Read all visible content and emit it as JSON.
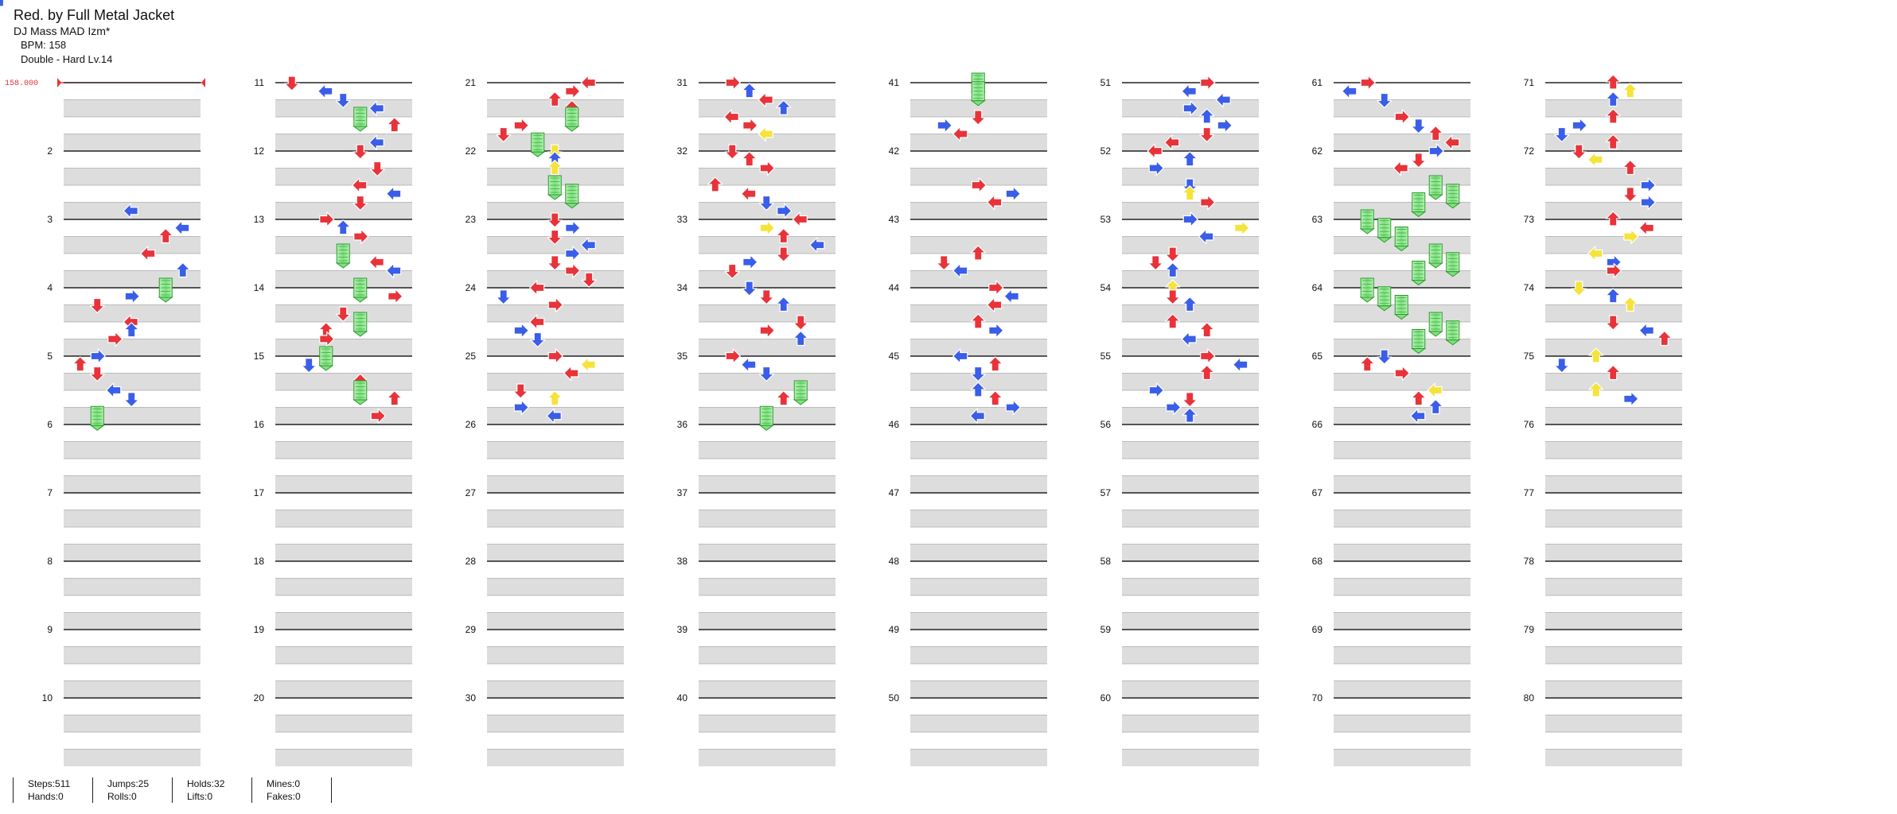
{
  "header": {
    "title": "Red. by Full Metal Jacket",
    "artist": "DJ Mass MAD Izm*",
    "bpm": "BPM: 158",
    "difficulty": "Double - Hard  Lv.14"
  },
  "bpm_marker": "158.000",
  "measure_labels": [
    "",
    "2",
    "3",
    "4",
    "5",
    "6",
    "7",
    "8",
    "9",
    "10",
    "11",
    "12",
    "13",
    "14",
    "15",
    "16",
    "17",
    "18",
    "19",
    "20",
    "21",
    "22",
    "23",
    "24",
    "25",
    "26",
    "27",
    "28",
    "29",
    "30",
    "31",
    "32",
    "33",
    "34",
    "35",
    "36",
    "37",
    "38",
    "39",
    "40",
    "41",
    "42",
    "43",
    "44",
    "45",
    "46",
    "47",
    "48",
    "49",
    "50",
    "51",
    "52",
    "53",
    "54",
    "55",
    "56",
    "57",
    "58",
    "59",
    "60",
    "61",
    "62",
    "63",
    "64",
    "65",
    "66",
    "67",
    "68",
    "69",
    "70",
    "71",
    "72",
    "73",
    "74",
    "75",
    "76",
    "77",
    "78",
    "79",
    "80"
  ],
  "arrow_colors": {
    "quarter": "#e8333a",
    "eighth": "#3a5ee8",
    "sixteenth": "#f5e33a",
    "hold": "#7ee07e"
  },
  "notes": {
    "c0": [
      [
        4,
        0,
        "r",
        4
      ],
      [
        4.25,
        3,
        "b",
        4
      ],
      [
        4.5,
        4,
        "r",
        4
      ],
      [
        4.75,
        3,
        "b",
        2
      ],
      [
        5,
        4,
        "r",
        4
      ],
      [
        5.25,
        6,
        "b",
        2
      ],
      [
        5.5,
        5,
        "r",
        3
      ],
      [
        6,
        4,
        "r",
        2
      ],
      [
        6.25,
        3,
        "b",
        4
      ],
      [
        6.5,
        6,
        "b",
        3
      ],
      [
        7,
        5,
        "h",
        1
      ],
      [
        7.25,
        3,
        "b",
        1
      ],
      [
        7.5,
        1,
        "r",
        0
      ],
      [
        8,
        3,
        "r",
        2
      ],
      [
        8.25,
        3,
        "b",
        3
      ],
      [
        8.5,
        2,
        "r",
        1
      ],
      [
        9,
        1,
        "b",
        1
      ],
      [
        9.25,
        0,
        "r",
        3
      ],
      [
        9.5,
        1,
        "r",
        0
      ],
      [
        10,
        2,
        "b",
        2
      ],
      [
        10.25,
        3,
        "b",
        0
      ],
      [
        10.75,
        1,
        "h",
        1
      ]
    ],
    "c1": [
      [
        1,
        0,
        "r",
        0
      ],
      [
        1.25,
        2,
        "b",
        2
      ],
      [
        1.5,
        3,
        "b",
        0
      ],
      [
        1.75,
        5,
        "b",
        2
      ],
      [
        2,
        4,
        "h",
        0
      ],
      [
        2.25,
        6,
        "r",
        3
      ],
      [
        2.75,
        5,
        "b",
        2
      ],
      [
        3,
        4,
        "r",
        0
      ],
      [
        3.5,
        5,
        "r",
        0
      ],
      [
        4,
        4,
        "r",
        2
      ],
      [
        4.25,
        6,
        "b",
        2
      ],
      [
        4.5,
        4,
        "r",
        0
      ],
      [
        5,
        2,
        "r",
        1
      ],
      [
        5.25,
        3,
        "b",
        3
      ],
      [
        5.5,
        4,
        "r",
        1
      ],
      [
        6,
        3,
        "h",
        0
      ],
      [
        6.25,
        5,
        "r",
        2
      ],
      [
        6.5,
        6,
        "b",
        2
      ],
      [
        7,
        4,
        "h",
        0
      ],
      [
        7.25,
        6,
        "r",
        1
      ],
      [
        7.75,
        3,
        "r",
        0
      ],
      [
        8,
        4,
        "h",
        0
      ],
      [
        8.25,
        2,
        "r",
        3
      ],
      [
        8.5,
        2,
        "r",
        1
      ],
      [
        9,
        2,
        "h",
        2
      ],
      [
        9.25,
        1,
        "b",
        0
      ],
      [
        9.75,
        4,
        "r",
        3
      ],
      [
        10,
        4,
        "h",
        0
      ],
      [
        10.25,
        6,
        "r",
        3
      ],
      [
        10.75,
        5,
        "r",
        1
      ]
    ],
    "c2": [
      [
        1,
        5,
        "r",
        2
      ],
      [
        1.25,
        4,
        "r",
        1
      ],
      [
        1.5,
        3,
        "r",
        3
      ],
      [
        1.75,
        4,
        "r",
        3
      ],
      [
        2,
        4,
        "h",
        2
      ],
      [
        2.25,
        1,
        "r",
        1
      ],
      [
        2.5,
        0,
        "r",
        0
      ],
      [
        2.75,
        2,
        "h",
        2
      ],
      [
        3,
        3,
        "y",
        0
      ],
      [
        3.25,
        3,
        "b",
        3
      ],
      [
        3.5,
        3,
        "y",
        3
      ],
      [
        4,
        3,
        "h",
        1
      ],
      [
        4.25,
        4,
        "h",
        1
      ],
      [
        5,
        3,
        "r",
        0
      ],
      [
        5.25,
        4,
        "b",
        1
      ],
      [
        5.5,
        3,
        "r",
        0
      ],
      [
        5.75,
        5,
        "b",
        2
      ],
      [
        6,
        4,
        "b",
        1
      ],
      [
        6.25,
        3,
        "r",
        0
      ],
      [
        6.5,
        4,
        "r",
        1
      ],
      [
        6.75,
        5,
        "r",
        0
      ],
      [
        7,
        2,
        "r",
        2
      ],
      [
        7.25,
        0,
        "b",
        0
      ],
      [
        7.5,
        3,
        "r",
        1
      ],
      [
        8,
        2,
        "r",
        2
      ],
      [
        8.25,
        1,
        "b",
        1
      ],
      [
        8.5,
        2,
        "b",
        0
      ],
      [
        9,
        3,
        "r",
        1
      ],
      [
        9.25,
        5,
        "y",
        2
      ],
      [
        9.5,
        4,
        "r",
        2
      ],
      [
        10,
        1,
        "r",
        0
      ],
      [
        10.25,
        3,
        "y",
        3
      ],
      [
        10.5,
        1,
        "b",
        1
      ],
      [
        10.75,
        3,
        "b",
        2
      ]
    ],
    "c3": [
      [
        1,
        1,
        "r",
        1
      ],
      [
        1.25,
        2,
        "b",
        3
      ],
      [
        1.5,
        3,
        "r",
        2
      ],
      [
        1.75,
        4,
        "b",
        3
      ],
      [
        2,
        1,
        "r",
        2
      ],
      [
        2.25,
        2,
        "r",
        1
      ],
      [
        2.5,
        3,
        "y",
        2
      ],
      [
        3,
        1,
        "r",
        0
      ],
      [
        3.25,
        2,
        "r",
        3
      ],
      [
        3.5,
        3,
        "r",
        1
      ],
      [
        4,
        0,
        "r",
        3
      ],
      [
        4.25,
        2,
        "r",
        2
      ],
      [
        4.5,
        3,
        "b",
        0
      ],
      [
        4.75,
        4,
        "b",
        1
      ],
      [
        5,
        5,
        "r",
        2
      ],
      [
        5.25,
        3,
        "y",
        1
      ],
      [
        5.5,
        4,
        "r",
        3
      ],
      [
        5.75,
        6,
        "b",
        2
      ],
      [
        6,
        4,
        "r",
        0
      ],
      [
        6.25,
        2,
        "b",
        1
      ],
      [
        6.5,
        1,
        "r",
        0
      ],
      [
        7,
        2,
        "b",
        0
      ],
      [
        7.25,
        3,
        "r",
        0
      ],
      [
        7.5,
        4,
        "b",
        3
      ],
      [
        8,
        5,
        "r",
        0
      ],
      [
        8.25,
        3,
        "r",
        1
      ],
      [
        8.5,
        5,
        "b",
        3
      ],
      [
        9,
        1,
        "r",
        1
      ],
      [
        9.25,
        2,
        "b",
        2
      ],
      [
        9.5,
        3,
        "b",
        0
      ],
      [
        10,
        5,
        "h",
        1
      ],
      [
        10.25,
        4,
        "r",
        3
      ],
      [
        10.75,
        3,
        "h",
        1
      ]
    ],
    "c4": [
      [
        1,
        3,
        "h",
        1
      ],
      [
        1.25,
        3,
        "h",
        2
      ],
      [
        2,
        3,
        "r",
        0
      ],
      [
        2.25,
        1,
        "b",
        1
      ],
      [
        2.5,
        2,
        "r",
        2
      ],
      [
        4,
        3,
        "r",
        1
      ],
      [
        4.25,
        5,
        "b",
        1
      ],
      [
        4.5,
        4,
        "r",
        2
      ],
      [
        6,
        3,
        "r",
        3
      ],
      [
        6.25,
        1,
        "r",
        0
      ],
      [
        6.5,
        2,
        "b",
        2
      ],
      [
        7,
        4,
        "r",
        1
      ],
      [
        7.25,
        5,
        "b",
        2
      ],
      [
        7.5,
        4,
        "r",
        2
      ],
      [
        8,
        3,
        "r",
        3
      ],
      [
        8.25,
        4,
        "b",
        1
      ],
      [
        9,
        2,
        "b",
        2
      ],
      [
        9.25,
        4,
        "r",
        3
      ],
      [
        9.5,
        3,
        "b",
        0
      ],
      [
        10,
        3,
        "b",
        3
      ],
      [
        10.25,
        4,
        "r",
        3
      ],
      [
        10.5,
        5,
        "b",
        1
      ],
      [
        10.75,
        3,
        "b",
        2
      ]
    ],
    "c5": [
      [
        1,
        4,
        "r",
        1
      ],
      [
        1.25,
        3,
        "b",
        2
      ],
      [
        1.5,
        5,
        "b",
        2
      ],
      [
        1.75,
        3,
        "b",
        1
      ],
      [
        2,
        4,
        "b",
        3
      ],
      [
        2.25,
        5,
        "b",
        1
      ],
      [
        2.5,
        4,
        "r",
        0
      ],
      [
        2.75,
        2,
        "r",
        2
      ],
      [
        3,
        1,
        "r",
        2
      ],
      [
        3.25,
        3,
        "b",
        3
      ],
      [
        3.5,
        1,
        "b",
        1
      ],
      [
        4,
        3,
        "b",
        0
      ],
      [
        4.25,
        3,
        "y",
        3
      ],
      [
        4.5,
        4,
        "r",
        1
      ],
      [
        5,
        3,
        "b",
        1
      ],
      [
        5.25,
        6,
        "y",
        1
      ],
      [
        5.5,
        4,
        "b",
        2
      ],
      [
        6,
        2,
        "r",
        0
      ],
      [
        6.25,
        1,
        "r",
        0
      ],
      [
        6.5,
        2,
        "b",
        3
      ],
      [
        7,
        2,
        "y",
        3
      ],
      [
        7.25,
        2,
        "r",
        0
      ],
      [
        7.5,
        3,
        "b",
        3
      ],
      [
        8,
        2,
        "r",
        3
      ],
      [
        8.25,
        4,
        "r",
        3
      ],
      [
        8.5,
        3,
        "b",
        2
      ],
      [
        9,
        4,
        "r",
        1
      ],
      [
        9.25,
        6,
        "b",
        2
      ],
      [
        9.5,
        4,
        "r",
        3
      ],
      [
        10,
        1,
        "b",
        1
      ],
      [
        10.25,
        3,
        "r",
        0
      ],
      [
        10.5,
        2,
        "b",
        1
      ],
      [
        10.75,
        3,
        "b",
        3
      ]
    ],
    "c6": [
      [
        1,
        1,
        "r",
        1
      ],
      [
        1.25,
        0,
        "b",
        2
      ],
      [
        1.5,
        2,
        "b",
        0
      ],
      [
        2,
        3,
        "r",
        1
      ],
      [
        2.25,
        4,
        "b",
        0
      ],
      [
        2.5,
        5,
        "r",
        3
      ],
      [
        2.75,
        6,
        "r",
        2
      ],
      [
        3,
        5,
        "b",
        1
      ],
      [
        3.25,
        4,
        "r",
        0
      ],
      [
        3.5,
        3,
        "r",
        2
      ],
      [
        4,
        5,
        "h",
        1
      ],
      [
        4.25,
        6,
        "h",
        1
      ],
      [
        4.5,
        4,
        "h",
        2
      ],
      [
        5,
        1,
        "h",
        2
      ],
      [
        5.25,
        2,
        "h",
        1
      ],
      [
        5.5,
        3,
        "h",
        1
      ],
      [
        6,
        5,
        "h",
        1
      ],
      [
        6.25,
        6,
        "h",
        1
      ],
      [
        6.5,
        4,
        "h",
        2
      ],
      [
        7,
        1,
        "h",
        1
      ],
      [
        7.25,
        2,
        "h",
        1
      ],
      [
        7.5,
        3,
        "h",
        1
      ],
      [
        8,
        5,
        "h",
        1
      ],
      [
        8.25,
        6,
        "h",
        1
      ],
      [
        8.5,
        4,
        "h",
        2
      ],
      [
        9,
        2,
        "b",
        0
      ],
      [
        9.25,
        1,
        "r",
        3
      ],
      [
        9.5,
        3,
        "r",
        1
      ],
      [
        10,
        5,
        "y",
        2
      ],
      [
        10.25,
        4,
        "r",
        3
      ],
      [
        10.5,
        5,
        "b",
        3
      ],
      [
        10.75,
        4,
        "b",
        2
      ]
    ],
    "c7": [
      [
        1,
        3,
        "r",
        3
      ],
      [
        1.25,
        4,
        "y",
        3
      ],
      [
        1.5,
        3,
        "b",
        3
      ],
      [
        2,
        3,
        "r",
        3
      ],
      [
        2.25,
        1,
        "b",
        1
      ],
      [
        2.5,
        0,
        "b",
        0
      ],
      [
        2.75,
        3,
        "r",
        3
      ],
      [
        3,
        1,
        "r",
        0
      ],
      [
        3.25,
        2,
        "y",
        2
      ],
      [
        3.5,
        4,
        "r",
        3
      ],
      [
        4,
        5,
        "b",
        1
      ],
      [
        4.25,
        4,
        "r",
        0
      ],
      [
        4.5,
        5,
        "b",
        1
      ],
      [
        5,
        3,
        "r",
        3
      ],
      [
        5.25,
        5,
        "r",
        2
      ],
      [
        5.5,
        4,
        "y",
        1
      ],
      [
        6,
        2,
        "y",
        2
      ],
      [
        6.25,
        3,
        "b",
        1
      ],
      [
        6.5,
        3,
        "r",
        1
      ],
      [
        7,
        1,
        "y",
        0
      ],
      [
        7.25,
        3,
        "b",
        3
      ],
      [
        7.5,
        4,
        "y",
        3
      ],
      [
        8,
        3,
        "r",
        0
      ],
      [
        8.25,
        5,
        "b",
        2
      ],
      [
        8.5,
        6,
        "r",
        3
      ],
      [
        9,
        2,
        "y",
        3
      ],
      [
        9.25,
        0,
        "b",
        0
      ],
      [
        9.5,
        3,
        "r",
        3
      ],
      [
        10,
        2,
        "y",
        3
      ],
      [
        10.25,
        4,
        "b",
        1
      ]
    ]
  },
  "stats": [
    {
      "a": "Steps:511",
      "b": "Hands:0"
    },
    {
      "a": "Jumps:25",
      "b": "Rolls:0"
    },
    {
      "a": "Holds:32",
      "b": "Lifts:0"
    },
    {
      "a": "Mines:0",
      "b": "Fakes:0"
    }
  ]
}
